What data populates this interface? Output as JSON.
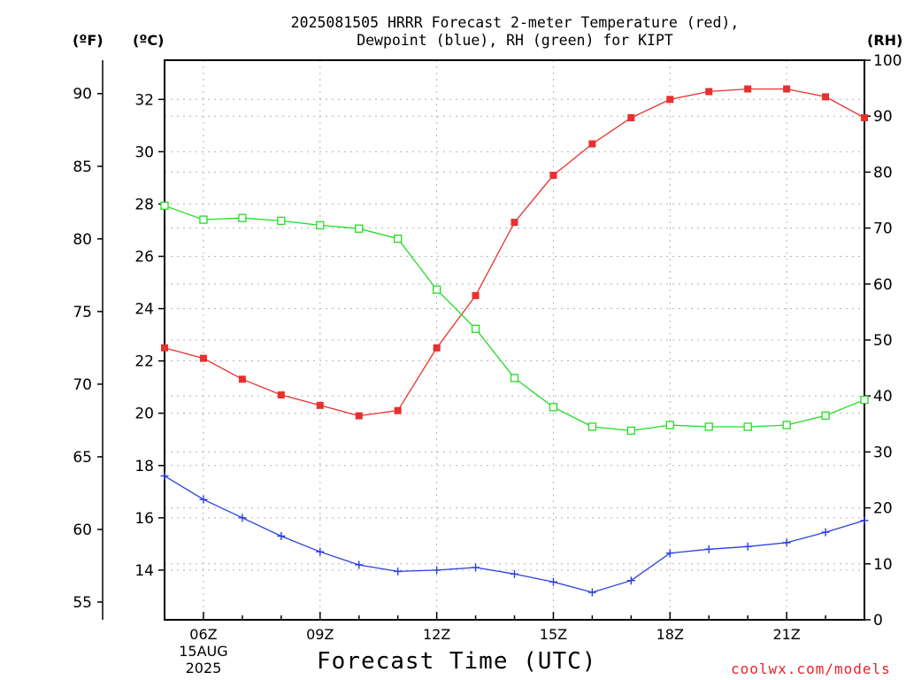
{
  "chart_data": {
    "type": "line",
    "title_line1": "2025081505 HRRR Forecast 2-meter Temperature (red),",
    "title_line2": "Dewpoint (blue), RH (green) for KIPT",
    "xlabel": "Forecast Time (UTC)",
    "units": {
      "left_f": "(ºF)",
      "left_c": "(ºC)",
      "right_rh": "(RH)"
    },
    "x_hours": [
      5,
      6,
      7,
      8,
      9,
      10,
      11,
      12,
      13,
      14,
      15,
      16,
      17,
      18,
      19,
      20,
      21,
      22,
      23
    ],
    "xlim": [
      5,
      23
    ],
    "x_ticks": [
      {
        "hour": 6,
        "label": "06Z",
        "sub1": "15AUG",
        "sub2": "2025"
      },
      {
        "hour": 9,
        "label": "09Z",
        "sub1": "",
        "sub2": ""
      },
      {
        "hour": 12,
        "label": "12Z",
        "sub1": "",
        "sub2": ""
      },
      {
        "hour": 15,
        "label": "15Z",
        "sub1": "",
        "sub2": ""
      },
      {
        "hour": 18,
        "label": "18Z",
        "sub1": "",
        "sub2": ""
      },
      {
        "hour": 21,
        "label": "21Z",
        "sub1": "",
        "sub2": ""
      }
    ],
    "celsius_axis": {
      "ylim": [
        12.1,
        33.5
      ],
      "ticks": [
        "14",
        "16",
        "18",
        "20",
        "22",
        "24",
        "26",
        "28",
        "30",
        "32"
      ]
    },
    "fahrenheit_axis": {
      "ticks": [
        "55",
        "60",
        "65",
        "70",
        "75",
        "80",
        "85",
        "90"
      ]
    },
    "rh_axis": {
      "ylim": [
        0,
        100
      ],
      "ticks": [
        "0",
        "10",
        "20",
        "30",
        "40",
        "50",
        "60",
        "70",
        "80",
        "90",
        "100"
      ]
    },
    "grid": true,
    "series": [
      {
        "key": "temperature",
        "axis": "celsius",
        "color": "#e8302e",
        "marker": "filled-square",
        "values": [
          22.5,
          22.1,
          21.3,
          20.7,
          20.3,
          19.9,
          20.1,
          22.5,
          24.5,
          27.3,
          29.1,
          30.3,
          31.3,
          32.0,
          32.3,
          32.4,
          32.4,
          32.1,
          31.3
        ]
      },
      {
        "key": "dewpoint",
        "axis": "celsius",
        "color": "#2a3fe0",
        "marker": "plus",
        "values": [
          17.6,
          16.7,
          16.0,
          15.3,
          14.7,
          14.2,
          13.95,
          14.0,
          14.1,
          13.85,
          13.55,
          13.15,
          13.6,
          14.65,
          14.8,
          14.9,
          15.05,
          15.45,
          15.9
        ]
      },
      {
        "key": "rh",
        "axis": "rh",
        "color": "#22dd22",
        "marker": "open-square",
        "values": [
          74.0,
          71.5,
          71.8,
          71.3,
          70.5,
          69.9,
          68.1,
          59.0,
          52.0,
          43.2,
          38.0,
          34.5,
          33.8,
          34.8,
          34.5,
          34.5,
          34.8,
          36.5,
          39.3
        ]
      }
    ]
  },
  "credit": "coolwx.com/models"
}
